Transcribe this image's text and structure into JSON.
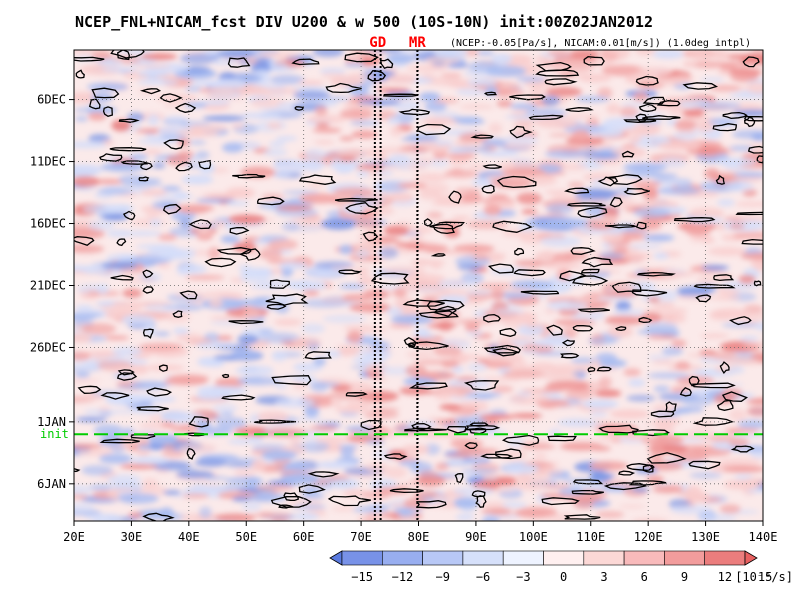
{
  "chart_data": {
    "type": "heatmap",
    "title": "NCEP_FNL+NICAM_fcst DIV U200 & w 500 (10S-10N) init:00Z02JAN2012",
    "subtitle": "(NCEP:-0.05[Pa/s], NICAM:0.01[m/s]) (1.0deg intpl)",
    "x_axis": {
      "ticks": [
        20,
        30,
        40,
        50,
        60,
        70,
        80,
        90,
        100,
        110,
        120,
        130,
        140
      ],
      "tick_labels": [
        "20E",
        "30E",
        "40E",
        "50E",
        "60E",
        "70E",
        "80E",
        "90E",
        "100E",
        "110E",
        "120E",
        "130E",
        "140E"
      ],
      "range": [
        20,
        140
      ]
    },
    "y_axis": {
      "ticks": [
        "2011-12-06",
        "2011-12-11",
        "2011-12-16",
        "2011-12-21",
        "2011-12-26",
        "2012-01-01",
        "2012-01-06"
      ],
      "tick_labels": [
        "6DEC",
        "11DEC",
        "16DEC",
        "21DEC",
        "26DEC",
        "1JAN",
        "6JAN"
      ],
      "range": [
        "2011-12-02",
        "2012-01-09"
      ],
      "direction": "time increases downward"
    },
    "markers": [
      {
        "label": "GD",
        "lon": [
          72.4,
          73.4
        ],
        "color": "#ff0000"
      },
      {
        "label": "MR",
        "lon": 79.8,
        "color": "#ff0000"
      }
    ],
    "init_line": {
      "label": "init",
      "date": "2012-01-02",
      "color": "#00cc00"
    },
    "colorbar": {
      "levels": [
        -15,
        -12,
        -9,
        -6,
        -3,
        0,
        3,
        6,
        9,
        12,
        15
      ],
      "level_labels": [
        "−15",
        "−12",
        "−9",
        "−6",
        "−3",
        "0",
        "3",
        "6",
        "9",
        "12",
        "15"
      ],
      "unit": "[10⁻⁶/s]",
      "colors": [
        "#5a7ae0",
        "#7892e8",
        "#98aef0",
        "#b8c8f6",
        "#d6e0fa",
        "#eef3ff",
        "#fff0f0",
        "#fcd8d6",
        "#f8babb",
        "#f29c9c",
        "#eb7d7d",
        "#e86060"
      ]
    },
    "fill_colors": {
      "neutral": "#fbeaea",
      "blue": [
        "#d4ddf9",
        "#a8bcf1",
        "#7d98e6"
      ],
      "red": [
        "#f8cdcd",
        "#f1a4a4",
        "#ea8282"
      ]
    },
    "contour_color": "#000000",
    "grid": true
  }
}
